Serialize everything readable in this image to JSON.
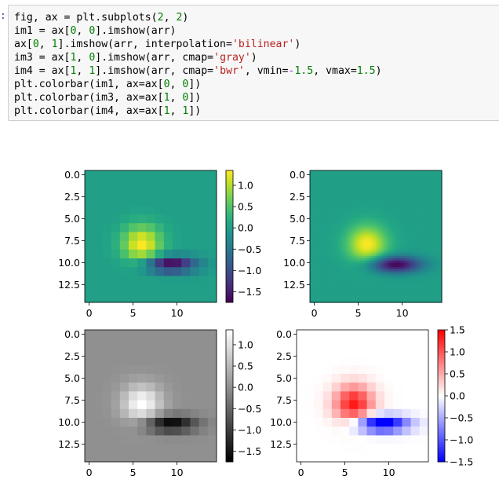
{
  "prompt_marker": ":",
  "code_lines": [
    [
      {
        "t": "fig, ax = plt.subplots("
      },
      {
        "t": "2",
        "c": "num"
      },
      {
        "t": ", "
      },
      {
        "t": "2",
        "c": "num"
      },
      {
        "t": ")"
      }
    ],
    [
      {
        "t": "im1 = ax["
      },
      {
        "t": "0",
        "c": "num"
      },
      {
        "t": ", "
      },
      {
        "t": "0",
        "c": "num"
      },
      {
        "t": "].imshow(arr)"
      }
    ],
    [
      {
        "t": "ax["
      },
      {
        "t": "0",
        "c": "num"
      },
      {
        "t": ", "
      },
      {
        "t": "1",
        "c": "num"
      },
      {
        "t": "].imshow(arr, interpolation="
      },
      {
        "t": "'bilinear'",
        "c": "str"
      },
      {
        "t": ")"
      }
    ],
    [
      {
        "t": "im3 = ax["
      },
      {
        "t": "1",
        "c": "num"
      },
      {
        "t": ", "
      },
      {
        "t": "0",
        "c": "num"
      },
      {
        "t": "].imshow(arr, cmap="
      },
      {
        "t": "'gray'",
        "c": "str"
      },
      {
        "t": ")"
      }
    ],
    [
      {
        "t": "im4 = ax["
      },
      {
        "t": "1",
        "c": "num"
      },
      {
        "t": ", "
      },
      {
        "t": "1",
        "c": "num"
      },
      {
        "t": "].imshow(arr, cmap="
      },
      {
        "t": "'bwr'",
        "c": "str"
      },
      {
        "t": ", vmin="
      },
      {
        "t": "-",
        "c": "op"
      },
      {
        "t": "1.5",
        "c": "num"
      },
      {
        "t": ", vmax="
      },
      {
        "t": "1.5",
        "c": "num"
      },
      {
        "t": ")"
      }
    ],
    [
      {
        "t": "plt.colorbar(im1, ax=ax["
      },
      {
        "t": "0",
        "c": "num"
      },
      {
        "t": ", "
      },
      {
        "t": "0",
        "c": "num"
      },
      {
        "t": "])"
      }
    ],
    [
      {
        "t": "plt.colorbar(im3, ax=ax["
      },
      {
        "t": "1",
        "c": "num"
      },
      {
        "t": ", "
      },
      {
        "t": "0",
        "c": "num"
      },
      {
        "t": "])"
      }
    ],
    [
      {
        "t": "plt.colorbar(im4, ax=ax["
      },
      {
        "t": "1",
        "c": "num"
      },
      {
        "t": ", "
      },
      {
        "t": "1",
        "c": "num"
      },
      {
        "t": "])"
      }
    ]
  ],
  "colors": {
    "code_bg": "#f7f7f7",
    "number": "#008000",
    "string": "#ba2121",
    "operator": "#aa22ff",
    "prompt": "#303f9f"
  },
  "chart_data": [
    {
      "type": "heatmap",
      "panel": "ax[0, 0]",
      "cmap": "viridis",
      "interpolation": "nearest",
      "data_shape": [
        15,
        15
      ],
      "function": "gaussian bump near (6, 8) minus elongated gaussian near (9, 10)",
      "x_ticks": [
        "0",
        "5",
        "10"
      ],
      "y_ticks": [
        "0.0",
        "2.5",
        "5.0",
        "7.5",
        "10.0",
        "12.5"
      ],
      "colorbar": {
        "ticks": [
          "1.0",
          "0.5",
          "0.0",
          "−0.5",
          "−1.0",
          "−1.5"
        ],
        "range": [
          -1.75,
          1.35
        ]
      }
    },
    {
      "type": "heatmap",
      "panel": "ax[0, 1]",
      "cmap": "viridis",
      "interpolation": "bilinear",
      "data_shape": [
        15,
        15
      ],
      "x_ticks": [
        "0",
        "5",
        "10"
      ],
      "y_ticks": [
        "0.0",
        "2.5",
        "5.0",
        "7.5",
        "10.0",
        "12.5"
      ]
    },
    {
      "type": "heatmap",
      "panel": "ax[1, 0]",
      "cmap": "gray",
      "interpolation": "nearest",
      "data_shape": [
        15,
        15
      ],
      "x_ticks": [
        "0",
        "5",
        "10"
      ],
      "y_ticks": [
        "0.0",
        "2.5",
        "5.0",
        "7.5",
        "10.0",
        "12.5"
      ],
      "colorbar": {
        "ticks": [
          "1.0",
          "0.5",
          "0.0",
          "−0.5",
          "−1.0",
          "−1.5"
        ],
        "range": [
          -1.75,
          1.35
        ]
      }
    },
    {
      "type": "heatmap",
      "panel": "ax[1, 1]",
      "cmap": "bwr",
      "interpolation": "nearest",
      "vmin": -1.5,
      "vmax": 1.5,
      "data_shape": [
        15,
        15
      ],
      "x_ticks": [
        "0",
        "5",
        "10"
      ],
      "y_ticks": [
        "0.0",
        "2.5",
        "5.0",
        "7.5",
        "10.0",
        "12.5"
      ],
      "colorbar": {
        "ticks": [
          "1.5",
          "1.0",
          "0.5",
          "0.0",
          "−0.5",
          "−1.0",
          "−1.5"
        ],
        "range": [
          -1.5,
          1.5
        ]
      }
    }
  ]
}
